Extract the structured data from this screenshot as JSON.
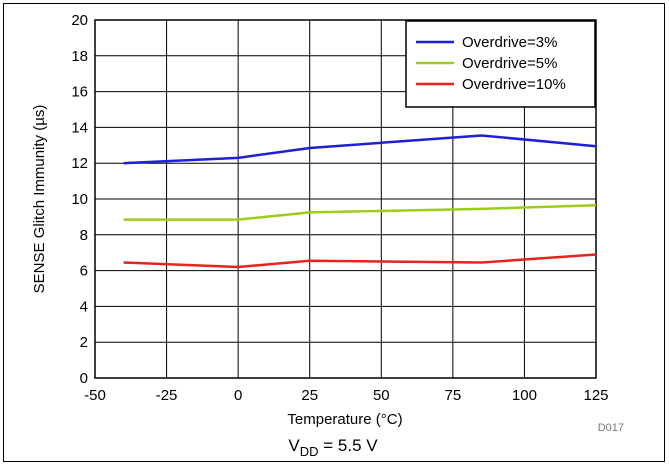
{
  "chart_data": {
    "type": "line",
    "xlabel": "Temperature (°C)",
    "ylabel": "SENSE Glitch Immunity (µs)",
    "xlim": [
      -50,
      125
    ],
    "ylim": [
      0,
      20
    ],
    "xticks": [
      -50,
      -25,
      0,
      25,
      50,
      75,
      100,
      125
    ],
    "yticks": [
      0,
      2,
      4,
      6,
      8,
      10,
      12,
      14,
      16,
      18,
      20
    ],
    "grid": true,
    "legend_position": "top-right",
    "series": [
      {
        "name": "Overdrive=3%",
        "color": "#1f1fd6",
        "x": [
          -40,
          0,
          25,
          85,
          125
        ],
        "y": [
          12.0,
          12.3,
          12.85,
          13.55,
          12.95
        ]
      },
      {
        "name": "Overdrive=5%",
        "color": "#9acd1a",
        "x": [
          -40,
          0,
          25,
          85,
          125
        ],
        "y": [
          8.85,
          8.85,
          9.25,
          9.45,
          9.65
        ]
      },
      {
        "name": "Overdrive=10%",
        "color": "#e8231e",
        "x": [
          -40,
          0,
          25,
          85,
          125
        ],
        "y": [
          6.45,
          6.2,
          6.55,
          6.45,
          6.9
        ]
      }
    ],
    "condition": {
      "main": "V",
      "sub": "DD",
      "rest": " = 5.5 V"
    },
    "figure_code": "D017"
  }
}
